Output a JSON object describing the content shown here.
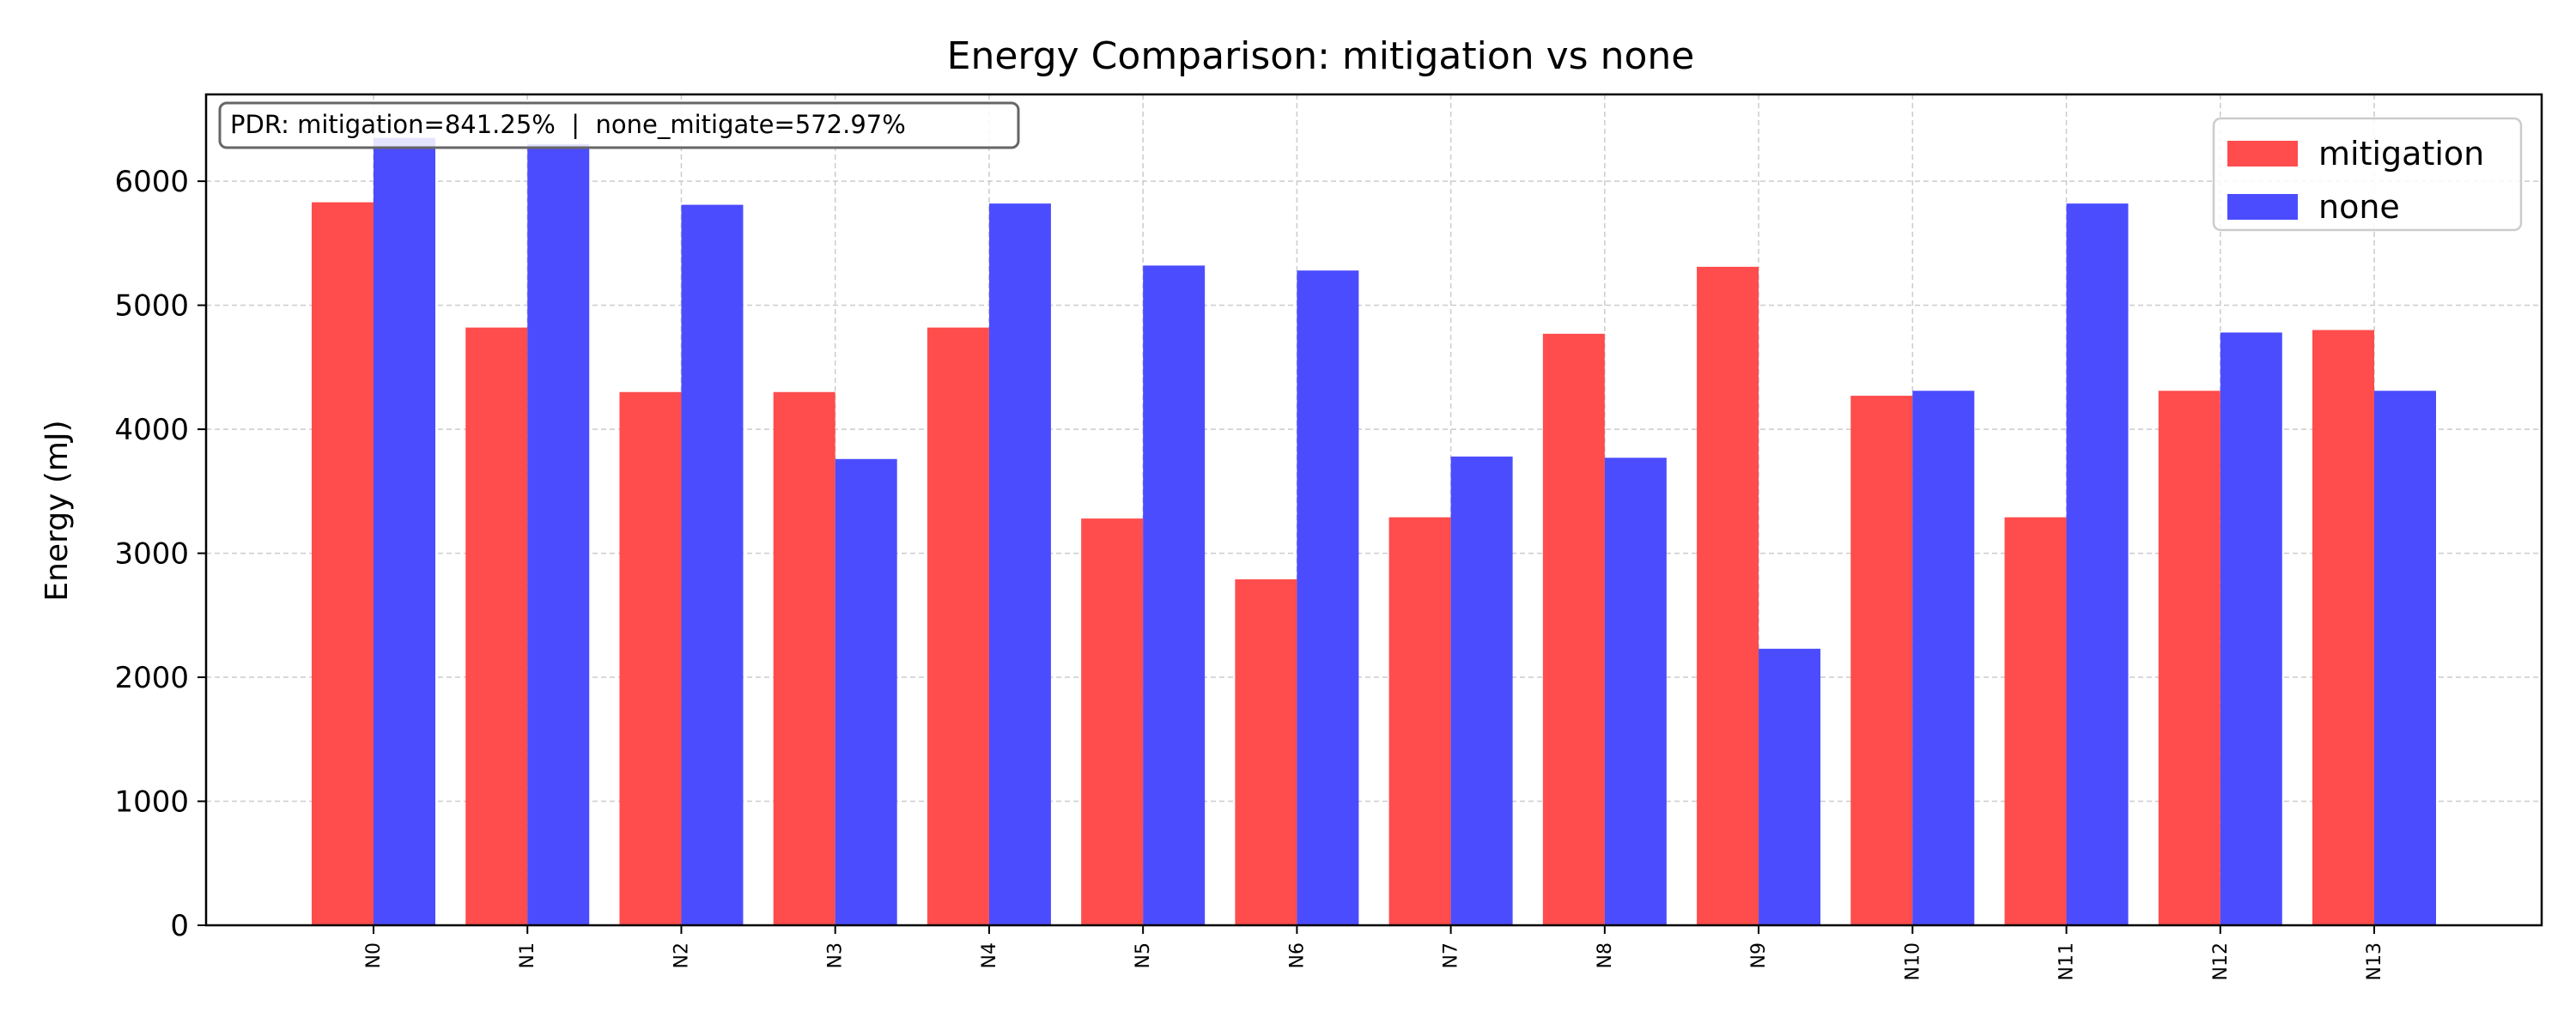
{
  "chart_data": {
    "type": "bar",
    "title": "Energy Comparison: mitigation vs none",
    "xlabel": "",
    "ylabel": "Energy (mJ)",
    "ylim": [
      0,
      6700
    ],
    "yticks": [
      0,
      1000,
      2000,
      3000,
      4000,
      5000,
      6000
    ],
    "grid": true,
    "legend_placement": "top-right",
    "annotation": "PDR: mitigation=841.25%  |  none_mitigate=572.97%",
    "categories": [
      "N0",
      "N1",
      "N2",
      "N3",
      "N4",
      "N5",
      "N6",
      "N7",
      "N8",
      "N9",
      "N10",
      "N11",
      "N12",
      "N13"
    ],
    "series": [
      {
        "name": "mitigation",
        "color": "#ff4c4c",
        "values": [
          5830,
          4820,
          4300,
          4300,
          4820,
          3280,
          2790,
          3290,
          4770,
          5310,
          4270,
          3290,
          4310,
          4800
        ]
      },
      {
        "name": "none",
        "color": "#4c4cff",
        "values": [
          6350,
          6300,
          5810,
          3760,
          5820,
          5320,
          5280,
          3780,
          3770,
          2230,
          4310,
          5820,
          4780,
          4310
        ]
      }
    ]
  }
}
